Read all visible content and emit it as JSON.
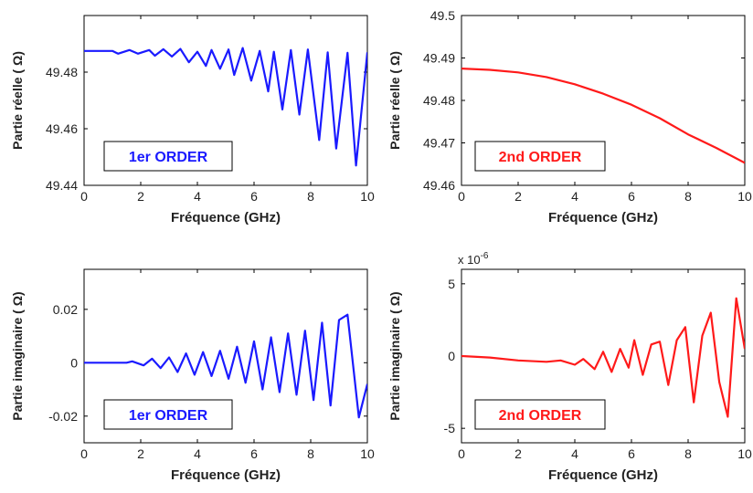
{
  "chart_data": [
    {
      "type": "line",
      "panel": "top-left",
      "xlabel": "Fréquence (GHz)",
      "ylabel": "Partie réelle ( Ω)",
      "xlim": [
        0,
        10
      ],
      "ylim": [
        49.44,
        49.5
      ],
      "xticks": [
        0,
        2,
        4,
        6,
        8,
        10
      ],
      "xtick_labels": [
        "0",
        "2",
        "4",
        "6",
        "8",
        "10"
      ],
      "yticks": [
        49.44,
        49.46,
        49.48
      ],
      "ytick_labels": [
        "49.44",
        "49.46",
        "49.48"
      ],
      "legend": "1er ORDER",
      "legend_placement": "bottom-left",
      "color": "#1a1aff",
      "series": [
        {
          "x": [
            0,
            1.0,
            1.2,
            1.6,
            1.9,
            2.3,
            2.5,
            2.8,
            3.1,
            3.4,
            3.7,
            4.0,
            4.3,
            4.5,
            4.8,
            5.1,
            5.3,
            5.6,
            5.9,
            6.2,
            6.5,
            6.7,
            7.0,
            7.3,
            7.6,
            7.9,
            8.3,
            8.6,
            8.9,
            9.3,
            9.6,
            10.0
          ],
          "values": [
            49.4875,
            49.4875,
            49.4865,
            49.4878,
            49.4865,
            49.4878,
            49.4858,
            49.4881,
            49.4855,
            49.4882,
            49.4835,
            49.4872,
            49.4822,
            49.4878,
            49.4812,
            49.488,
            49.479,
            49.4885,
            49.477,
            49.4875,
            49.4732,
            49.4872,
            49.4668,
            49.4878,
            49.465,
            49.488,
            49.456,
            49.487,
            49.453,
            49.4868,
            49.447,
            49.487
          ]
        }
      ]
    },
    {
      "type": "line",
      "panel": "top-right",
      "xlabel": "Fréquence (GHz)",
      "ylabel": "Partie réelle ( Ω)",
      "xlim": [
        0,
        10
      ],
      "ylim": [
        49.46,
        49.5
      ],
      "xticks": [
        0,
        2,
        4,
        6,
        8,
        10
      ],
      "xtick_labels": [
        "0",
        "2",
        "4",
        "6",
        "8",
        "10"
      ],
      "yticks": [
        49.46,
        49.47,
        49.48,
        49.49,
        49.5
      ],
      "ytick_labels": [
        "49.46",
        "49.47",
        "49.48",
        "49.49",
        "49.5"
      ],
      "legend": "2nd ORDER",
      "legend_placement": "bottom-left",
      "color": "#ff1a1a",
      "series": [
        {
          "x": [
            0,
            1,
            2,
            3,
            4,
            5,
            6,
            7,
            8,
            9,
            10
          ],
          "values": [
            49.4875,
            49.4872,
            49.4866,
            49.4855,
            49.4838,
            49.4816,
            49.479,
            49.4758,
            49.472,
            49.4688,
            49.4653
          ]
        }
      ]
    },
    {
      "type": "line",
      "panel": "bottom-left",
      "xlabel": "Fréquence (GHz)",
      "ylabel": "Partie imaginaire ( Ω)",
      "xlim": [
        0,
        10
      ],
      "ylim": [
        -0.03,
        0.035
      ],
      "xticks": [
        0,
        2,
        4,
        6,
        8,
        10
      ],
      "xtick_labels": [
        "0",
        "2",
        "4",
        "6",
        "8",
        "10"
      ],
      "yticks": [
        -0.02,
        0,
        0.02
      ],
      "ytick_labels": [
        "-0.02",
        "0",
        "0.02"
      ],
      "legend": "1er ORDER",
      "legend_placement": "bottom-left",
      "color": "#1a1aff",
      "series": [
        {
          "x": [
            0,
            1.5,
            1.7,
            2.1,
            2.4,
            2.7,
            3.0,
            3.3,
            3.6,
            3.9,
            4.2,
            4.5,
            4.8,
            5.1,
            5.4,
            5.7,
            6.0,
            6.3,
            6.6,
            6.9,
            7.2,
            7.5,
            7.8,
            8.1,
            8.4,
            8.7,
            9.0,
            9.3,
            9.7,
            10.0
          ],
          "values": [
            0,
            0,
            0.0005,
            -0.001,
            0.0015,
            -0.002,
            0.002,
            -0.0035,
            0.0035,
            -0.0045,
            0.004,
            -0.005,
            0.0045,
            -0.006,
            0.006,
            -0.0075,
            0.008,
            -0.01,
            0.0095,
            -0.011,
            0.011,
            -0.012,
            0.012,
            -0.014,
            0.015,
            -0.016,
            0.016,
            0.018,
            -0.0205,
            -0.008
          ]
        }
      ]
    },
    {
      "type": "line",
      "panel": "bottom-right",
      "xlabel": "Fréquence (GHz)",
      "ylabel": "Partie imaginaire ( Ω)",
      "xlim": [
        0,
        10
      ],
      "ylim": [
        -6,
        6
      ],
      "y_scale_label_base": "x 10",
      "y_scale_label_exponent": "-6",
      "xticks": [
        0,
        2,
        4,
        6,
        8,
        10
      ],
      "xtick_labels": [
        "0",
        "2",
        "4",
        "6",
        "8",
        "10"
      ],
      "yticks": [
        -5,
        0,
        5
      ],
      "ytick_labels": [
        "-5",
        "0",
        "5"
      ],
      "legend": "2nd ORDER",
      "legend_placement": "bottom-left",
      "color": "#ff1a1a",
      "series": [
        {
          "x": [
            0,
            1,
            2,
            3,
            3.5,
            4.0,
            4.3,
            4.7,
            5.0,
            5.3,
            5.6,
            5.9,
            6.1,
            6.4,
            6.7,
            7.0,
            7.3,
            7.6,
            7.9,
            8.2,
            8.5,
            8.8,
            9.1,
            9.4,
            9.7,
            10.0
          ],
          "values": [
            0,
            -0.1,
            -0.3,
            -0.4,
            -0.3,
            -0.6,
            -0.2,
            -0.9,
            0.3,
            -1.1,
            0.5,
            -0.8,
            1.1,
            -1.3,
            0.8,
            1.0,
            -2.0,
            1.1,
            2.0,
            -3.2,
            1.4,
            3.0,
            -1.8,
            -4.2,
            4.0,
            0.5
          ]
        }
      ]
    }
  ]
}
